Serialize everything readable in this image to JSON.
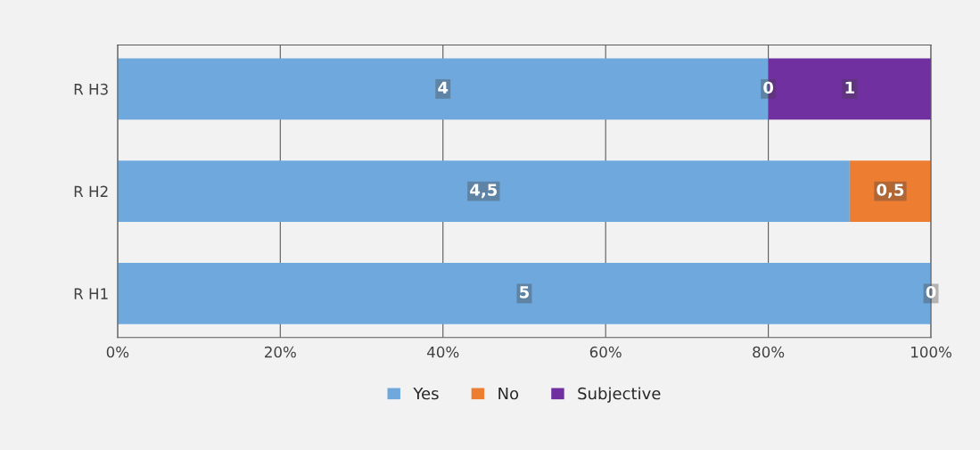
{
  "chart_data": {
    "type": "bar",
    "orientation": "horizontal",
    "stacked": true,
    "categories": [
      "R H3",
      "R H2",
      "R H1"
    ],
    "series": [
      {
        "name": "Yes",
        "color": "#6fa8dc",
        "values": [
          80,
          90,
          100
        ]
      },
      {
        "name": "No",
        "color": "#ed7d31",
        "values": [
          0,
          10,
          0
        ]
      },
      {
        "name": "Subjective",
        "color": "#7030a0",
        "values": [
          20,
          0,
          0
        ]
      }
    ],
    "annotations": [
      {
        "text": "4",
        "x": 40,
        "y": "R H3"
      },
      {
        "text": "0",
        "x": 80,
        "y": "R H3"
      },
      {
        "text": "1",
        "x": 90,
        "y": "R H3"
      },
      {
        "text": "4,5",
        "x": 45,
        "y": "R H2"
      },
      {
        "text": "0,5",
        "x": 95,
        "y": "R H2"
      },
      {
        "text": "5",
        "x": 50,
        "y": "R H1"
      },
      {
        "text": "0",
        "x": 100,
        "y": "R H1"
      }
    ],
    "xlim": [
      0,
      100
    ],
    "xticks": [
      {
        "value": 0,
        "label": "0%"
      },
      {
        "value": 20,
        "label": "20%"
      },
      {
        "value": 40,
        "label": "40%"
      },
      {
        "value": 60,
        "label": "60%"
      },
      {
        "value": 80,
        "label": "80%"
      },
      {
        "value": 100,
        "label": "100%"
      }
    ],
    "grid": "x",
    "legend": "bottom"
  }
}
